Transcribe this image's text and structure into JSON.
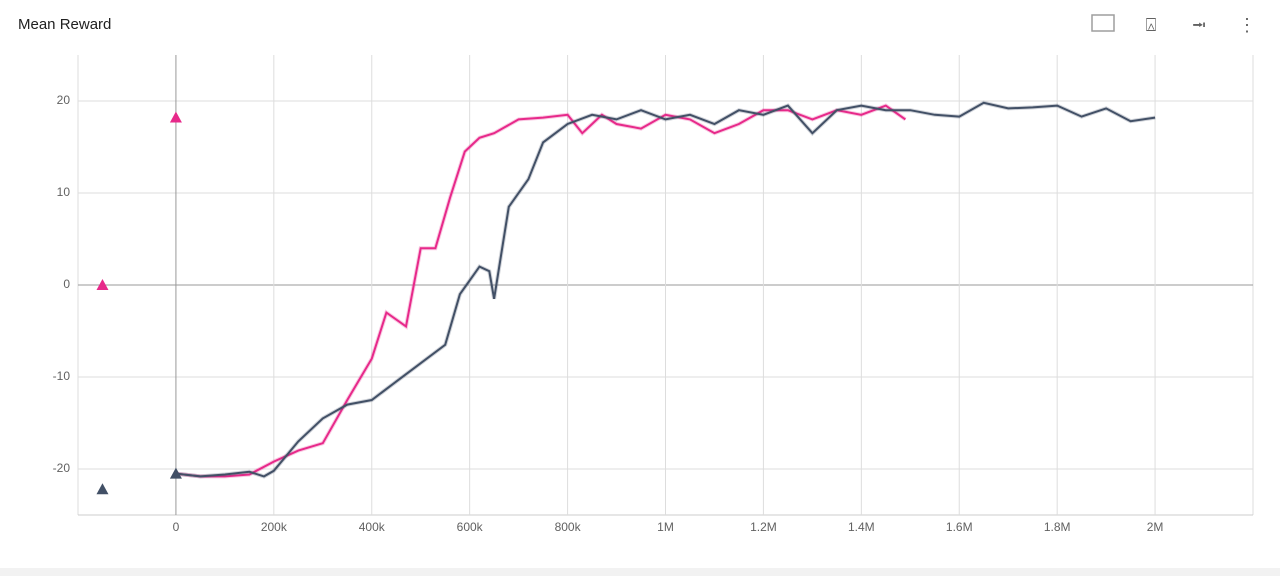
{
  "chart_data": {
    "type": "line",
    "title": "Mean Reward",
    "xlim": [
      -200000,
      2200000
    ],
    "ylim": [
      -25,
      25
    ],
    "xticks": [
      {
        "value": 0,
        "label": "0"
      },
      {
        "value": 200000,
        "label": "200k"
      },
      {
        "value": 400000,
        "label": "400k"
      },
      {
        "value": 600000,
        "label": "600k"
      },
      {
        "value": 800000,
        "label": "800k"
      },
      {
        "value": 1000000,
        "label": "1M"
      },
      {
        "value": 1200000,
        "label": "1.2M"
      },
      {
        "value": 1400000,
        "label": "1.4M"
      },
      {
        "value": 1600000,
        "label": "1.6M"
      },
      {
        "value": 1800000,
        "label": "1.8M"
      },
      {
        "value": 2000000,
        "label": "2M"
      }
    ],
    "yticks": [
      -20,
      -10,
      0,
      10,
      20
    ],
    "grid": true,
    "series": [
      {
        "color": "#e7298a",
        "x": [
          0,
          50000,
          100000,
          150000,
          200000,
          250000,
          300000,
          350000,
          400000,
          430000,
          470000,
          500000,
          530000,
          560000,
          590000,
          620000,
          650000,
          700000,
          750000,
          800000,
          830000,
          870000,
          900000,
          950000,
          1000000,
          1050000,
          1100000,
          1150000,
          1200000,
          1250000,
          1300000,
          1350000,
          1400000,
          1450000,
          1490000
        ],
        "values": [
          -20.5,
          -20.8,
          -20.8,
          -20.6,
          -19.2,
          -18,
          -17.2,
          -12.5,
          -8,
          -3,
          -4.5,
          4,
          4,
          9.5,
          14.5,
          16,
          16.5,
          18,
          18.2,
          18.5,
          16.5,
          18.5,
          17.5,
          17,
          18.5,
          18,
          16.5,
          17.5,
          19,
          19,
          18,
          19,
          18.5,
          19.5,
          18
        ]
      },
      {
        "color": "#425066",
        "x": [
          0,
          50000,
          100000,
          150000,
          180000,
          200000,
          250000,
          300000,
          350000,
          400000,
          450000,
          500000,
          550000,
          580000,
          600000,
          620000,
          640000,
          650000,
          680000,
          720000,
          750000,
          800000,
          850000,
          900000,
          950000,
          1000000,
          1050000,
          1100000,
          1150000,
          1200000,
          1250000,
          1300000,
          1350000,
          1400000,
          1450000,
          1500000,
          1550000,
          1600000,
          1650000,
          1700000,
          1750000,
          1800000,
          1850000,
          1900000,
          1950000,
          2000000
        ],
        "values": [
          -20.5,
          -20.8,
          -20.6,
          -20.3,
          -20.8,
          -20.2,
          -17,
          -14.5,
          -13,
          -12.5,
          -10.5,
          -8.5,
          -6.5,
          -1,
          0.5,
          2,
          1.5,
          -1.5,
          8.5,
          11.5,
          15.5,
          17.5,
          18.5,
          18,
          19,
          18,
          18.5,
          17.5,
          19,
          18.5,
          19.5,
          16.5,
          19,
          19.5,
          19,
          19,
          18.5,
          18.3,
          19.8,
          19.2,
          19.3,
          19.5,
          18.3,
          19.2,
          17.8,
          18.2
        ]
      }
    ],
    "markers": [
      {
        "x": -150000,
        "y": 0,
        "color": "#e7298a"
      },
      {
        "x": 0,
        "y": 18.2,
        "color": "#e7298a"
      },
      {
        "x": -150000,
        "y": -22.2,
        "color": "#425066"
      },
      {
        "x": 0,
        "y": -20.5,
        "color": "#425066"
      }
    ]
  }
}
